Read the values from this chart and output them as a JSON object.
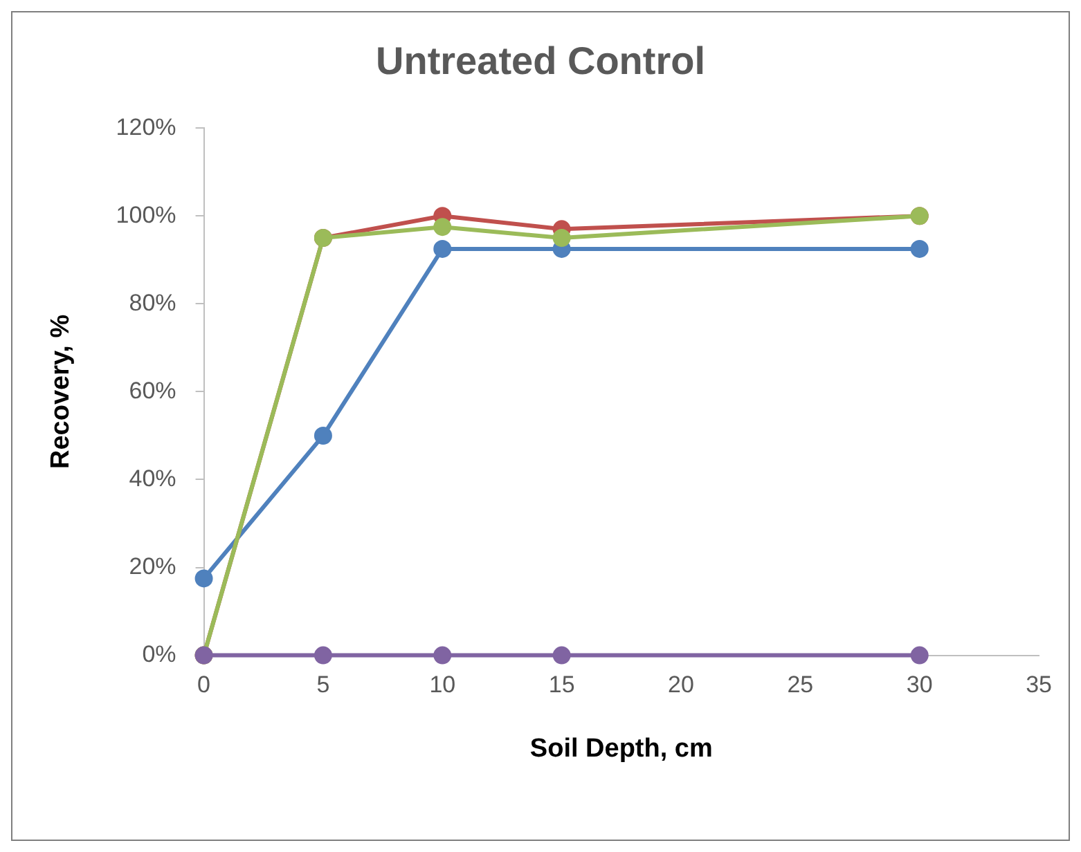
{
  "chart_data": {
    "type": "line",
    "title": "Untreated Control",
    "xlabel": "Soil Depth, cm",
    "ylabel": "Recovery, %",
    "x": [
      0,
      5,
      10,
      15,
      30
    ],
    "series": [
      {
        "color": "#4f81bd",
        "values": [
          17.5,
          50,
          92.5,
          92.5,
          92.5
        ]
      },
      {
        "color": "#c0504d",
        "values": [
          0,
          95,
          100,
          97,
          100
        ]
      },
      {
        "color": "#9bbb59",
        "values": [
          0,
          95,
          97.5,
          95,
          100
        ]
      },
      {
        "color": "#8064a2",
        "values": [
          0,
          0,
          0,
          0,
          0
        ]
      }
    ],
    "xlim": [
      0,
      35
    ],
    "xticks": [
      0,
      5,
      10,
      15,
      20,
      25,
      30,
      35
    ],
    "ylim": [
      0,
      120
    ],
    "yticks": [
      {
        "value": 0,
        "label": "0%"
      },
      {
        "value": 20,
        "label": "20%"
      },
      {
        "value": 40,
        "label": "40%"
      },
      {
        "value": 60,
        "label": "60%"
      },
      {
        "value": 80,
        "label": "80%"
      },
      {
        "value": 100,
        "label": "100%"
      },
      {
        "value": 120,
        "label": "120%"
      }
    ],
    "grid": false,
    "legend": false,
    "marker": "circle",
    "line_style": "solid"
  }
}
